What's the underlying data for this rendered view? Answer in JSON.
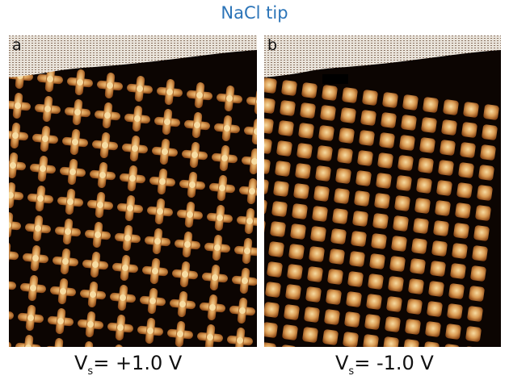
{
  "title": "NaCl tip",
  "panels": [
    {
      "letter": "a",
      "caption": {
        "symbol": "V",
        "subscript": "s",
        "value": "= +1.0 V"
      }
    },
    {
      "letter": "b",
      "caption": {
        "symbol": "V",
        "subscript": "s",
        "value": "= -1.0 V"
      }
    }
  ],
  "colors": {
    "title": "#2b74b8",
    "background": "#0c0502",
    "feature_dark": "#8a4716",
    "feature_light": "#f7dca2"
  }
}
